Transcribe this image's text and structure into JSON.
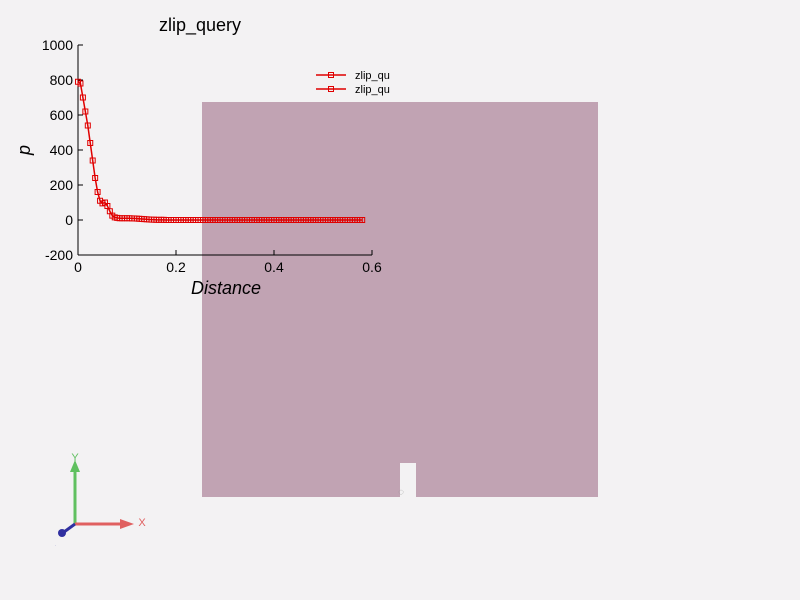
{
  "chart_data": {
    "type": "line",
    "title": "zlip_query",
    "xlabel": "Distance",
    "ylabel": "p",
    "xlim": [
      0,
      0.6
    ],
    "ylim": [
      -200,
      1000
    ],
    "xticks": [
      "0",
      "0.2",
      "0.4",
      "0.6"
    ],
    "yticks": [
      "-200",
      "0",
      "200",
      "400",
      "600",
      "800",
      "1000"
    ],
    "legend_position": "top-right",
    "series": [
      {
        "name": "zlip_qu",
        "color": "#e00000",
        "x": [
          0,
          0.005,
          0.01,
          0.015,
          0.02,
          0.025,
          0.03,
          0.035,
          0.04,
          0.045,
          0.05,
          0.055,
          0.06,
          0.065,
          0.07,
          0.075,
          0.08,
          0.085,
          0.09,
          0.095,
          0.1,
          0.105,
          0.11,
          0.115,
          0.12,
          0.125,
          0.13,
          0.135,
          0.14,
          0.145,
          0.15,
          0.155,
          0.16,
          0.165,
          0.17,
          0.175,
          0.18,
          0.185,
          0.19,
          0.195,
          0.2,
          0.205,
          0.21,
          0.215,
          0.22,
          0.225,
          0.23,
          0.235,
          0.24,
          0.245,
          0.25,
          0.255,
          0.26,
          0.265,
          0.27,
          0.275,
          0.28,
          0.285,
          0.29,
          0.295,
          0.3,
          0.305,
          0.31,
          0.315,
          0.32,
          0.325,
          0.33,
          0.335,
          0.34,
          0.345,
          0.35,
          0.355,
          0.36,
          0.365,
          0.37,
          0.375,
          0.38,
          0.385,
          0.39,
          0.395,
          0.4,
          0.405,
          0.41,
          0.415,
          0.42,
          0.425,
          0.43,
          0.435,
          0.44,
          0.445,
          0.45,
          0.455,
          0.46,
          0.465,
          0.47,
          0.475,
          0.48,
          0.485,
          0.49,
          0.495,
          0.5,
          0.505,
          0.51,
          0.515,
          0.52,
          0.525,
          0.53,
          0.535,
          0.54,
          0.545,
          0.55,
          0.555,
          0.56,
          0.565,
          0.57,
          0.575,
          0.58
        ],
        "y": [
          790,
          780,
          700,
          620,
          540,
          440,
          340,
          240,
          160,
          110,
          95,
          100,
          80,
          50,
          25,
          15,
          12,
          10,
          10,
          10,
          10,
          10,
          9,
          9,
          8,
          7,
          6,
          5,
          4,
          3,
          2,
          2,
          1,
          1,
          1,
          1,
          0,
          0,
          0,
          0,
          0,
          0,
          0,
          0,
          0,
          0,
          0,
          0,
          0,
          0,
          0,
          0,
          0,
          0,
          0,
          0,
          0,
          0,
          0,
          0,
          0,
          0,
          0,
          0,
          0,
          0,
          0,
          0,
          0,
          0,
          0,
          0,
          0,
          0,
          0,
          0,
          0,
          0,
          0,
          0,
          0,
          0,
          0,
          0,
          0,
          0,
          0,
          0,
          0,
          0,
          0,
          0,
          0,
          0,
          0,
          0,
          0,
          0,
          0,
          0,
          0,
          0,
          0,
          0,
          0,
          0,
          0,
          0,
          0,
          0,
          0,
          0,
          0,
          0,
          0,
          0,
          0
        ]
      },
      {
        "name": "zlip_qu",
        "color": "#e00000",
        "x": [],
        "y": []
      }
    ]
  },
  "scene": {
    "slab_color": "#c1a3b3",
    "background": "#f3f2f3",
    "notch_mark": "◌"
  },
  "axes_triad": {
    "x_label": "X",
    "y_label": "Y",
    "z_label": "Z",
    "x_color": "#e06060",
    "y_color": "#60c060",
    "z_color": "#3030a0"
  }
}
